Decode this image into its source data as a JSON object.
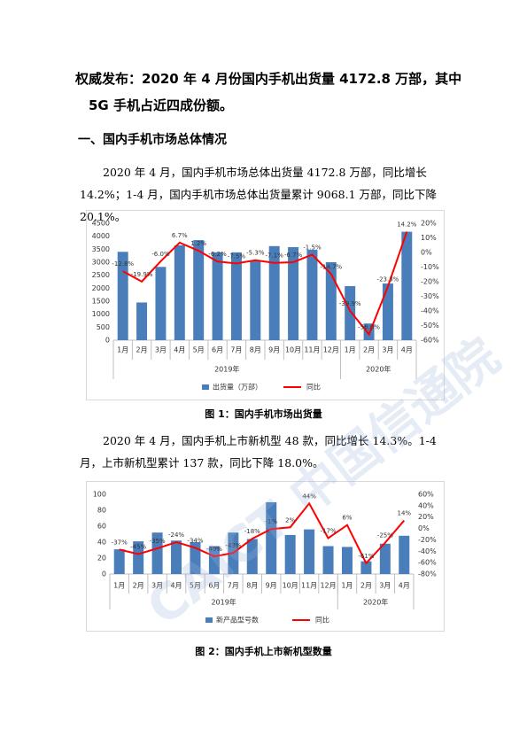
{
  "document": {
    "title": "权威发布：2020 年 4 月份国内手机出货量 4172.8 万部，其中 5G 手机占近四成份额。",
    "section_heading": "一、国内手机市场总体情况",
    "paragraphs": [
      "2020 年 4 月，国内手机市场总体出货量 4172.8 万部，同比增长 14.2%；1-4 月，国内手机市场总体出货量累计 9068.1 万部，同比下降 20.1%。",
      "2020 年 4 月，国内手机上市新机型 48 款，同比增长 14.3%。1-4 月，上市新机型累计 137 款，同比下降 18.0%。"
    ],
    "captions": [
      "图 1：国内手机市场出货量",
      "图 2：国内手机上市新机型数量"
    ],
    "watermark": "CAICT 中国信通院"
  },
  "chart_data": [
    {
      "type": "combo",
      "groups": [
        {
          "label": "2019年",
          "categories": [
            "1月",
            "2月",
            "3月",
            "4月",
            "5月",
            "6月",
            "7月",
            "8月",
            "9月",
            "10月",
            "11月",
            "12月"
          ]
        },
        {
          "label": "2020年",
          "categories": [
            "1月",
            "2月",
            "3月",
            "4月"
          ]
        }
      ],
      "series": [
        {
          "name": "出货量（万部）",
          "type": "bar",
          "color": "#4a7ebb",
          "values": [
            3400,
            1450,
            2820,
            3650,
            3850,
            3380,
            3380,
            3050,
            3620,
            3580,
            3480,
            3000,
            2080,
            640,
            2180,
            4172.8
          ]
        },
        {
          "name": "同比",
          "type": "line",
          "axis": "y2",
          "color": "#ff0000",
          "values": [
            -12.8,
            -19.9,
            -6.0,
            6.7,
            1.2,
            -6.2,
            -7.5,
            -5.3,
            -7.1,
            -6.7,
            -1.5,
            -14.7,
            -39.9,
            -56.0,
            -23.3,
            14.2
          ],
          "value_labels": [
            "-12.8%",
            "-19.9%",
            "-6.0%",
            "6.7%",
            "1.2%",
            "-6.2%",
            "-7.5%",
            "-5.3%",
            "-7.1%",
            "-6.7%",
            "-1.5%",
            "-14.7%",
            "-39.9%",
            "-56.0%",
            "-23.3%",
            "14.2%"
          ]
        }
      ],
      "ylim": [
        0,
        4500
      ],
      "yticks": [
        0,
        500,
        1000,
        1500,
        2000,
        2500,
        3000,
        3500,
        4000,
        4500
      ],
      "y2lim": [
        -60,
        20
      ],
      "y2ticks": [
        {
          "value": -60,
          "label": "-60%"
        },
        {
          "value": -50,
          "label": "-50%"
        },
        {
          "value": -40,
          "label": "-40%"
        },
        {
          "value": -30,
          "label": "-30%"
        },
        {
          "value": -20,
          "label": "-20%"
        },
        {
          "value": -10,
          "label": "-10%"
        },
        {
          "value": 0,
          "label": "0%"
        },
        {
          "value": 10,
          "label": "10%"
        },
        {
          "value": 20,
          "label": "20%"
        }
      ]
    },
    {
      "type": "combo",
      "groups": [
        {
          "label": "2019年",
          "categories": [
            "1月",
            "2月",
            "3月",
            "4月",
            "5月",
            "6月",
            "7月",
            "8月",
            "9月",
            "10月",
            "11月",
            "12月"
          ]
        },
        {
          "label": "2020年",
          "categories": [
            "1月",
            "2月",
            "3月",
            "4月"
          ]
        }
      ],
      "series": [
        {
          "name": "新产品型号数",
          "type": "bar",
          "color": "#4a7ebb",
          "values": [
            31,
            41,
            52,
            42,
            40,
            35,
            52,
            44,
            90,
            49,
            56,
            35,
            34,
            16,
            38,
            48
          ]
        },
        {
          "name": "同比",
          "type": "line",
          "axis": "y2",
          "color": "#ff0000",
          "values": [
            -37,
            -45,
            -35,
            -24,
            -34,
            -49,
            -43,
            -18,
            -1,
            2,
            44,
            -17,
            6,
            -61,
            -25,
            14
          ],
          "value_labels": [
            "-37%",
            "-45%",
            "-35%",
            "-24%",
            "-34%",
            "-49%",
            "-43%",
            "-18%",
            "-1%",
            "2%",
            "44%",
            "-17%",
            "6%",
            "-61%",
            "-25%",
            "14%"
          ]
        }
      ],
      "ylim": [
        0,
        100
      ],
      "yticks": [
        0,
        20,
        40,
        60,
        80,
        100
      ],
      "y2lim": [
        -80,
        60
      ],
      "y2ticks": [
        {
          "value": -80,
          "label": "-80%"
        },
        {
          "value": -60,
          "label": "-60%"
        },
        {
          "value": -40,
          "label": "-40%"
        },
        {
          "value": -20,
          "label": "-20%"
        },
        {
          "value": 0,
          "label": "0%"
        },
        {
          "value": 20,
          "label": "20%"
        },
        {
          "value": 40,
          "label": "40%"
        },
        {
          "value": 60,
          "label": "60%"
        }
      ]
    }
  ]
}
